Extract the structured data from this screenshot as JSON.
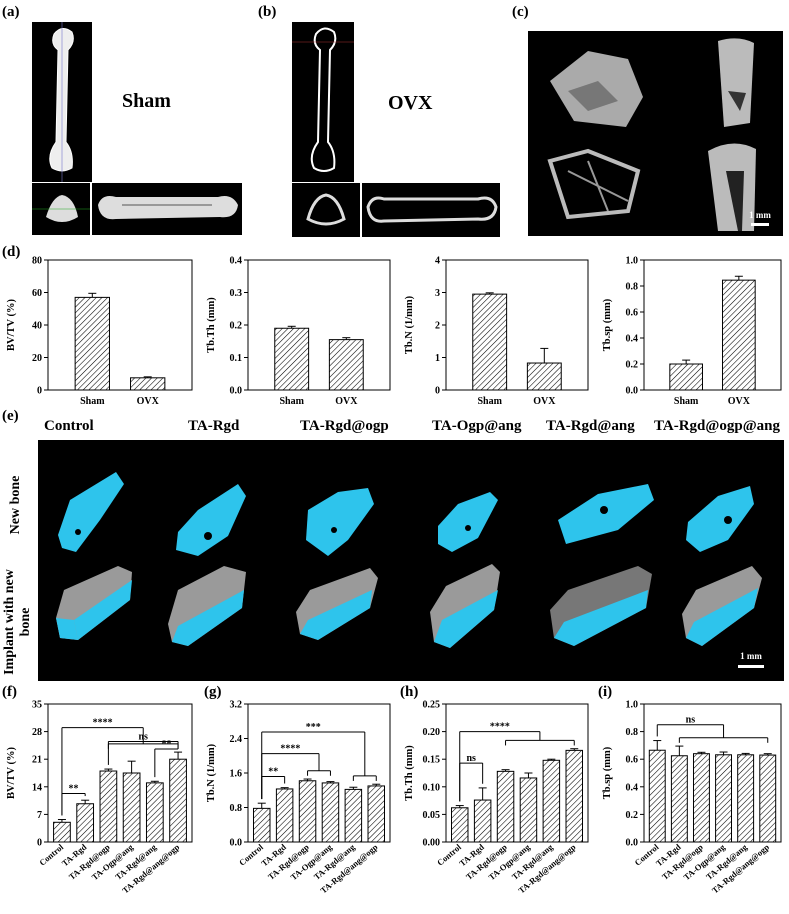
{
  "panel_labels": {
    "a": "(a)",
    "b": "(b)",
    "c": "(c)",
    "d": "(d)",
    "e": "(e)",
    "f": "(f)",
    "g": "(g)",
    "h": "(h)",
    "i": "(i)"
  },
  "panel_a": {
    "label": "Sham"
  },
  "panel_b": {
    "label": "OVX"
  },
  "panel_c": {
    "scale": "1 mm"
  },
  "panel_e": {
    "groups": [
      "Control",
      "TA-Rgd",
      "TA-Rgd@ogp",
      "TA-Ogp@ang",
      "TA-Rgd@ang",
      "TA-Rgd@ogp@ang"
    ],
    "row_labels": [
      "New bone",
      "Implant with new bone"
    ],
    "scale": "1 mm"
  },
  "colors": {
    "new_bone": "#2ec4ec",
    "implant": "#9a9a9a",
    "bar_hatch": "#000000"
  },
  "chart_data": [
    {
      "id": "d1",
      "type": "bar",
      "categories": [
        "Sham",
        "OVX"
      ],
      "values": [
        57,
        7.5
      ],
      "errors": [
        2.5,
        0.6
      ],
      "ylabel": "BV/TV (%)",
      "ylim": [
        0,
        80
      ],
      "yticks": [
        0,
        20,
        40,
        60,
        80
      ],
      "sig": []
    },
    {
      "id": "d2",
      "type": "bar",
      "categories": [
        "Sham",
        "OVX"
      ],
      "values": [
        0.19,
        0.155
      ],
      "errors": [
        0.006,
        0.006
      ],
      "ylabel": "Tb.Th (mm)",
      "ylim": [
        0,
        0.4
      ],
      "yticks": [
        0,
        0.1,
        0.2,
        0.3,
        0.4
      ],
      "sig": []
    },
    {
      "id": "d3",
      "type": "bar",
      "categories": [
        "Sham",
        "OVX"
      ],
      "values": [
        2.95,
        0.83
      ],
      "errors": [
        0.04,
        0.45
      ],
      "ylabel": "Tb.N (1/mm)",
      "ylim": [
        0,
        4
      ],
      "yticks": [
        0,
        1,
        2,
        3,
        4
      ],
      "sig": []
    },
    {
      "id": "d4",
      "type": "bar",
      "categories": [
        "Sham",
        "OVX"
      ],
      "values": [
        0.2,
        0.845
      ],
      "errors": [
        0.03,
        0.03
      ],
      "ylabel": "Tb.sp (mm)",
      "ylim": [
        0,
        1
      ],
      "yticks": [
        0,
        0.2,
        0.4,
        0.6,
        0.8,
        1.0
      ],
      "sig": []
    },
    {
      "id": "f",
      "type": "bar",
      "categories": [
        "Control",
        "TA-Rgd",
        "TA-Rgd@ogp",
        "TA-Ogp@ang",
        "TA-Rgd@ang",
        "TA-Rgd@ang@ogp"
      ],
      "values": [
        5,
        9.7,
        18,
        17.5,
        15,
        21
      ],
      "errors": [
        0.7,
        0.9,
        0.5,
        3,
        0.4,
        1.8
      ],
      "ylabel": "BV/TV (%)",
      "ylim": [
        0,
        35
      ],
      "yticks": [
        0,
        7,
        14,
        21,
        28,
        35
      ],
      "sig": [
        {
          "a": 0,
          "b": 1,
          "text": "**",
          "y": 12.3
        },
        {
          "a": 0,
          "b": "2-5",
          "text": "****",
          "y": 29
        },
        {
          "a": 2,
          "b": 5,
          "text": "ns",
          "y": 25.5
        },
        {
          "a": 4,
          "b": 5,
          "text": "**",
          "y": 23.6
        }
      ]
    },
    {
      "id": "g",
      "type": "bar",
      "categories": [
        "Control",
        "TA-Rgd",
        "TA-Rgd@ogp",
        "TA-Ogp@ang",
        "TA-Rgd@ang",
        "TA-Rgd@ang@ogp"
      ],
      "values": [
        0.78,
        1.23,
        1.42,
        1.37,
        1.22,
        1.3
      ],
      "errors": [
        0.12,
        0.03,
        0.04,
        0.03,
        0.05,
        0.04
      ],
      "ylabel": "Tb.N (1/mm)",
      "ylim": [
        0,
        3.2
      ],
      "yticks": [
        0,
        0.8,
        1.6,
        2.4,
        3.2
      ],
      "sig": [
        {
          "a": 0,
          "b": 1,
          "text": "**",
          "y": 1.52
        },
        {
          "a": 0,
          "b": "2-3",
          "text": "****",
          "y": 2.05
        },
        {
          "a": 0,
          "b": "4-5",
          "text": "***",
          "y": 2.55
        }
      ]
    },
    {
      "id": "h",
      "type": "bar",
      "categories": [
        "Control",
        "TA-Rgd",
        "TA-Rgd@ogp",
        "TA-Ogp@ang",
        "TA-Rgd@ang",
        "TA-Rgd@ang@ogp"
      ],
      "values": [
        0.062,
        0.076,
        0.128,
        0.116,
        0.148,
        0.166
      ],
      "errors": [
        0.004,
        0.022,
        0.003,
        0.009,
        0.002,
        0.003
      ],
      "ylabel": "Tb.Th (mm)",
      "ylim": [
        0,
        0.25
      ],
      "yticks": [
        0,
        0.05,
        0.1,
        0.15,
        0.2,
        0.25
      ],
      "sig": [
        {
          "a": 0,
          "b": 1,
          "text": "ns",
          "y": 0.143
        },
        {
          "a": 0,
          "b": "2-5",
          "text": "****",
          "y": 0.2
        }
      ]
    },
    {
      "id": "i",
      "type": "bar",
      "categories": [
        "Control",
        "TA-Rgd",
        "TA-Rgd@ogp",
        "TA-Ogp@ang",
        "TA-Rgd@ang",
        "TA-Rgd@ang@ogp"
      ],
      "values": [
        0.665,
        0.625,
        0.64,
        0.632,
        0.632,
        0.63
      ],
      "errors": [
        0.07,
        0.07,
        0.01,
        0.02,
        0.01,
        0.01
      ],
      "ylabel": "Tb.sp (mm)",
      "ylim": [
        0,
        1
      ],
      "yticks": [
        0,
        0.2,
        0.4,
        0.6,
        0.8,
        1.0
      ],
      "sig": [
        {
          "a": 0,
          "b": "1-5",
          "text": "ns",
          "y": 0.85
        }
      ]
    }
  ]
}
